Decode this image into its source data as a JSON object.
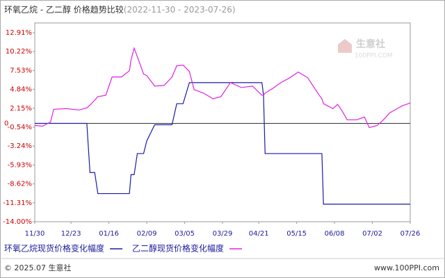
{
  "chart_data": {
    "type": "line",
    "title": "环氧乙烷 - 乙二醇 价格趋势比较",
    "subtitle": "(2022-11-30 - 2023-07-26)",
    "x": [
      "11/30",
      "12/05",
      "12/10",
      "12/12",
      "12/20",
      "12/28",
      "01/02",
      "01/04",
      "01/07",
      "01/09",
      "01/14",
      "01/18",
      "01/24",
      "01/29",
      "01/30",
      "02/01",
      "02/03",
      "02/07",
      "02/09",
      "02/14",
      "02/20",
      "02/25",
      "02/28",
      "03/04",
      "03/08",
      "03/11",
      "03/17",
      "03/23",
      "03/28",
      "04/03",
      "04/10",
      "04/17",
      "04/23",
      "04/24",
      "04/25",
      "04/30",
      "05/05",
      "05/10",
      "05/16",
      "05/22",
      "05/29",
      "05/31",
      "06/01",
      "06/07",
      "06/10",
      "06/13",
      "06/16",
      "06/22",
      "06/27",
      "06/30",
      "07/05",
      "07/09",
      "07/13",
      "07/17",
      "07/21",
      "07/26"
    ],
    "series": [
      {
        "name": "环氧乙烷现货价格变化幅度",
        "color": "#1a1aa6",
        "values": [
          0,
          0,
          0,
          0,
          0,
          0,
          0,
          -7.0,
          -7.0,
          -10.0,
          -10.0,
          -10.0,
          -10.0,
          -10.0,
          -7.3,
          -7.3,
          -4.3,
          -4.3,
          -2.5,
          -0.2,
          -0.2,
          -0.2,
          2.8,
          2.8,
          5.8,
          5.8,
          5.8,
          5.8,
          5.8,
          5.8,
          5.8,
          5.8,
          5.8,
          4.0,
          -4.3,
          -4.3,
          -4.3,
          -4.3,
          -4.3,
          -4.3,
          -4.3,
          -4.3,
          -11.5,
          -11.5,
          -11.5,
          -11.5,
          -11.5,
          -11.5,
          -11.5,
          -11.5,
          -11.5,
          -11.5,
          -11.5,
          -11.5,
          -11.5,
          -11.5
        ]
      },
      {
        "name": "乙二醇现货价格变化幅度",
        "color": "#e020e0",
        "values": [
          -0.3,
          -0.4,
          0.2,
          2.0,
          2.1,
          1.9,
          2.2,
          2.6,
          3.3,
          3.8,
          4.0,
          6.6,
          6.6,
          7.5,
          9.0,
          10.7,
          9.5,
          7.0,
          6.8,
          5.3,
          5.4,
          6.6,
          8.2,
          8.3,
          7.4,
          4.8,
          4.3,
          3.5,
          3.8,
          5.8,
          5.1,
          5.3,
          4.0,
          4.0,
          4.3,
          5.0,
          5.8,
          6.4,
          7.3,
          6.5,
          4.1,
          3.5,
          2.8,
          2.1,
          2.7,
          1.7,
          0.5,
          0.5,
          0.9,
          -0.6,
          -0.3,
          0.5,
          1.5,
          2.0,
          2.5,
          2.9
        ]
      }
    ],
    "xlim": [
      "11/30",
      "07/26"
    ],
    "xticks": [
      "11/30",
      "12/23",
      "01/16",
      "02/09",
      "03/05",
      "03/29",
      "04/21",
      "05/15",
      "06/08",
      "07/02",
      "07/26"
    ],
    "ylim": [
      -14.0,
      12.91
    ],
    "yticks": [
      {
        "value": 12.91,
        "label": "12.91%"
      },
      {
        "value": 10.22,
        "label": "10.22%"
      },
      {
        "value": 7.53,
        "label": "7.53%"
      },
      {
        "value": 4.84,
        "label": "4.84%"
      },
      {
        "value": 2.15,
        "label": "2.15%"
      },
      0,
      {
        "value": -0.54,
        "label": "-0.54%"
      },
      {
        "value": -3.24,
        "label": "-3.24%"
      },
      {
        "value": -5.93,
        "label": "-5.93%"
      },
      {
        "value": -8.62,
        "label": "-8.62%"
      },
      {
        "value": -11.31,
        "label": "-11.31%"
      },
      {
        "value": -14.0,
        "label": "-14.00%"
      }
    ],
    "grid": false,
    "legend": "bottom",
    "watermark": {
      "name": "生意社",
      "site": "100PPI.COM"
    },
    "footer": {
      "copyright": "© 2025.07 生意社",
      "site": "www.100PPI.com"
    }
  }
}
